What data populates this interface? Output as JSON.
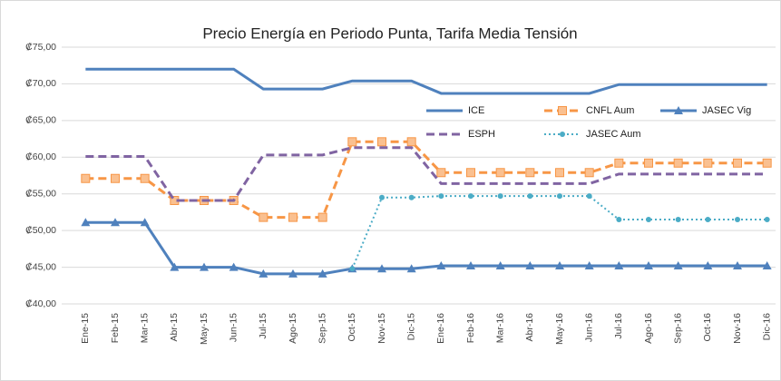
{
  "chart_data": {
    "type": "line",
    "title": "Precio Energía en Periodo Punta, Tarifa Media Tensión",
    "categories": [
      "Ene-15",
      "Feb-15",
      "Mar-15",
      "Abr-15",
      "May-15",
      "Jun-15",
      "Jul-15",
      "Ago-15",
      "Sep-15",
      "Oct-15",
      "Nov-15",
      "Dic-15",
      "Ene-16",
      "Feb-16",
      "Mar-16",
      "Abr-16",
      "May-16",
      "Jun-16",
      "Jul-16",
      "Ago-16",
      "Sep-16",
      "Oct-16",
      "Nov-16",
      "Dic-16"
    ],
    "ylim": [
      40,
      75
    ],
    "yticks": [
      {
        "value": 40,
        "label": "₡40,00"
      },
      {
        "value": 45,
        "label": "₡45,00"
      },
      {
        "value": 50,
        "label": "₡50,00"
      },
      {
        "value": 55,
        "label": "₡55,00"
      },
      {
        "value": 60,
        "label": "₡60,00"
      },
      {
        "value": 65,
        "label": "₡65,00"
      },
      {
        "value": 70,
        "label": "₡70,00"
      },
      {
        "value": 75,
        "label": "₡75,00"
      }
    ],
    "grid": true,
    "series": [
      {
        "name": "ICE",
        "color": "#4f81bd",
        "dash": "solid",
        "marker": "none",
        "values": [
          72,
          72,
          72,
          72,
          72,
          72,
          69.3,
          69.3,
          69.3,
          70.4,
          70.4,
          70.4,
          68.7,
          68.7,
          68.7,
          68.7,
          68.7,
          68.7,
          69.9,
          69.9,
          69.9,
          69.9,
          69.9,
          69.9
        ]
      },
      {
        "name": "CNFL Aum",
        "color": "#f79646",
        "dash": "dashed",
        "marker": "square",
        "values": [
          57.1,
          57.1,
          57.1,
          54.1,
          54.1,
          54.1,
          51.8,
          51.8,
          51.8,
          62.1,
          62.1,
          62.1,
          57.9,
          57.9,
          57.9,
          57.9,
          57.9,
          57.9,
          59.2,
          59.2,
          59.2,
          59.2,
          59.2,
          59.2
        ]
      },
      {
        "name": "JASEC Vig",
        "color": "#4f81bd",
        "dash": "solid",
        "marker": "triangle",
        "values": [
          51.1,
          51.1,
          51.1,
          45,
          45,
          45,
          44.1,
          44.1,
          44.1,
          44.8,
          44.8,
          44.8,
          45.2,
          45.2,
          45.2,
          45.2,
          45.2,
          45.2,
          45.2,
          45.2,
          45.2,
          45.2,
          45.2,
          45.2
        ]
      },
      {
        "name": "ESPH",
        "color": "#8064a2",
        "dash": "dashed",
        "marker": "none",
        "values": [
          60.1,
          60.1,
          60.1,
          54.1,
          54.1,
          54.1,
          60.3,
          60.3,
          60.3,
          61.3,
          61.3,
          61.3,
          56.4,
          56.4,
          56.4,
          56.4,
          56.4,
          56.4,
          57.7,
          57.7,
          57.7,
          57.7,
          57.7,
          57.7
        ]
      },
      {
        "name": "JASEC Aum",
        "color": "#4bacc6",
        "dash": "dotted",
        "marker": "circle",
        "values": [
          null,
          null,
          null,
          null,
          null,
          null,
          null,
          null,
          null,
          44.8,
          54.5,
          54.5,
          54.7,
          54.7,
          54.7,
          54.7,
          54.7,
          54.7,
          51.5,
          51.5,
          51.5,
          51.5,
          51.5,
          51.5
        ]
      }
    ]
  }
}
